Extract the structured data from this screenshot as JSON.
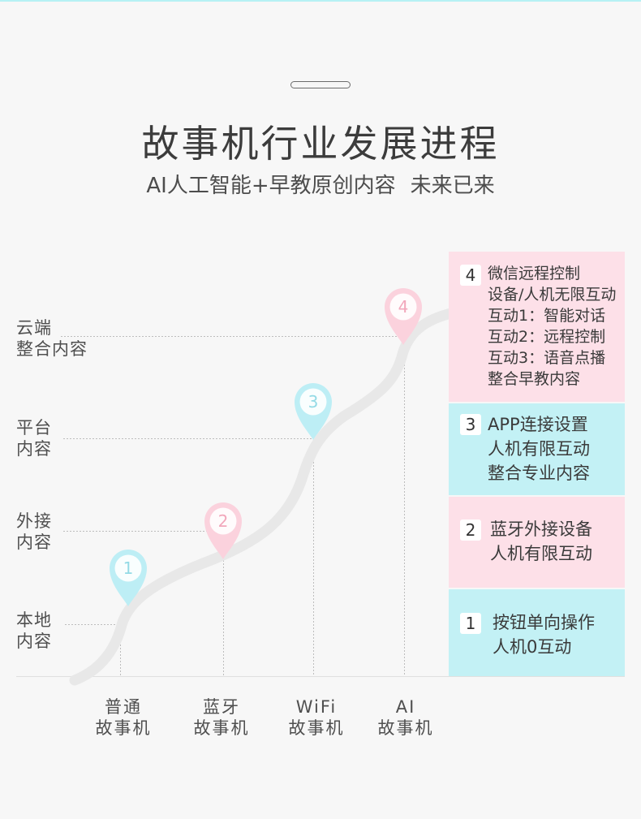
{
  "colors": {
    "background": "#f7f7f7",
    "top_bar": "#b6f1f4",
    "curve": "#e8e8e8"
  },
  "header": {
    "title": "故事机行业发展进程",
    "subtitle": "AI人工智能+早教原创内容",
    "tagline": "未来已来"
  },
  "y_levels": [
    {
      "lines": [
        "本地",
        "内容"
      ]
    },
    {
      "lines": [
        "外接",
        "内容"
      ]
    },
    {
      "lines": [
        "平台",
        "内容"
      ]
    },
    {
      "lines": [
        "云端",
        "整合内容"
      ]
    }
  ],
  "x_categories": [
    {
      "lines": [
        "普通",
        "故事机"
      ]
    },
    {
      "lines": [
        "蓝牙",
        "故事机"
      ]
    },
    {
      "lines": [
        "WiFi",
        "故事机"
      ]
    },
    {
      "lines": [
        "AI",
        "故事机"
      ]
    }
  ],
  "stages": [
    {
      "number": "1",
      "box_color": "#c3f1f5",
      "pin_color": "#bdeef5",
      "pin_text_color": "#93dae5",
      "features": [
        "按钮单向操作",
        "人机0互动"
      ]
    },
    {
      "number": "2",
      "box_color": "#fde0e8",
      "pin_color": "#fbd2dd",
      "pin_text_color": "#f2a7bb",
      "features": [
        "蓝牙外接设备",
        "人机有限互动"
      ]
    },
    {
      "number": "3",
      "box_color": "#c3f1f5",
      "pin_color": "#bdeef5",
      "pin_text_color": "#93dae5",
      "features": [
        "APP连接设置",
        "人机有限互动",
        "整合专业内容"
      ]
    },
    {
      "number": "4",
      "box_color": "#fde0e8",
      "pin_color": "#fbd2dd",
      "pin_text_color": "#f2a7bb",
      "features": [
        "微信远程控制",
        "设备/人机无限互动",
        "互动1：智能对话",
        "互动2：远程控制",
        "互动3：语音点播",
        "整合早教内容"
      ]
    }
  ]
}
